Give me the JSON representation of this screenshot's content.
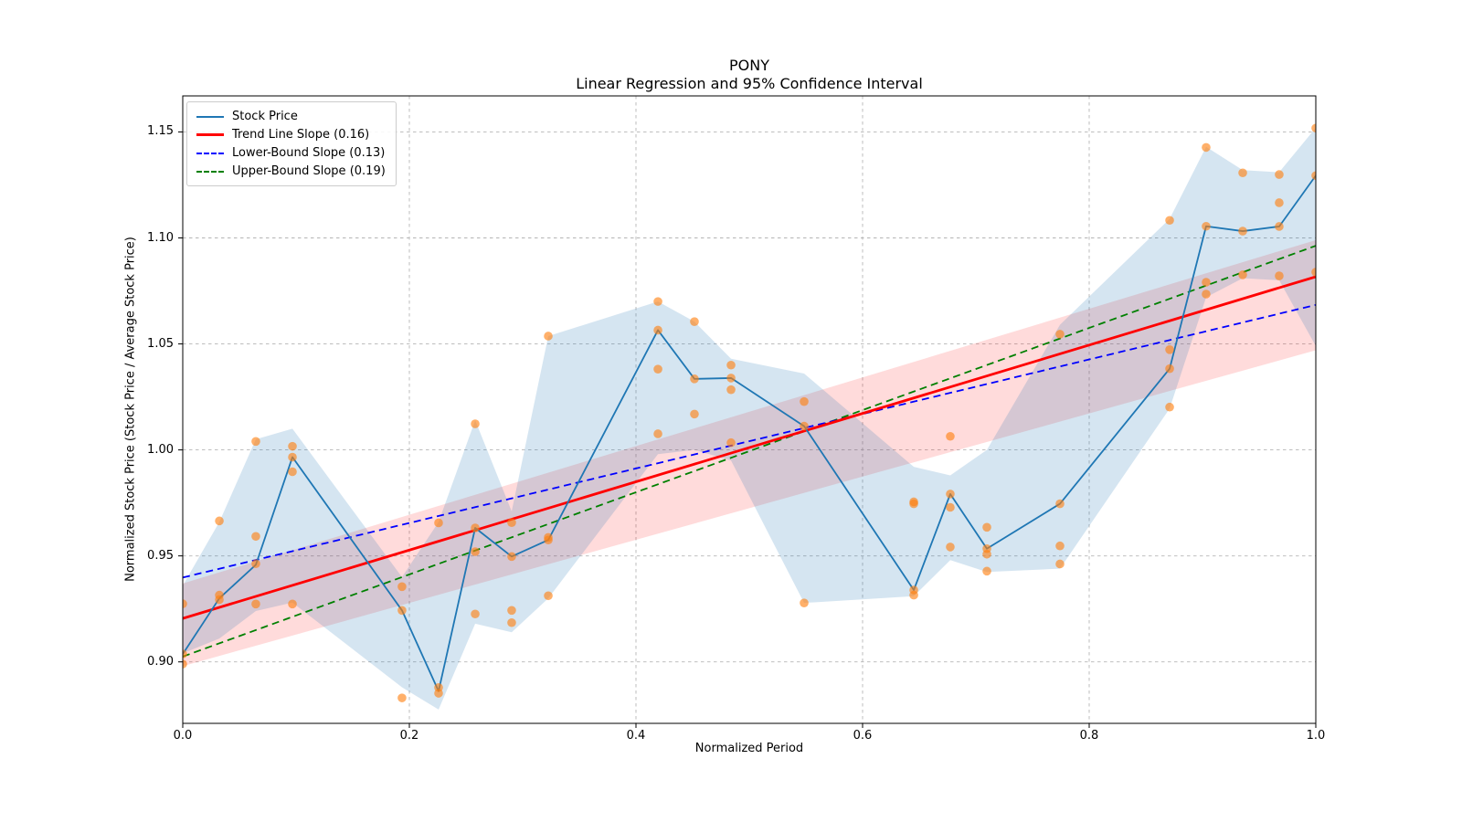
{
  "title": {
    "line1": "PONY",
    "line2": "Linear Regression and 95% Confidence Interval"
  },
  "axes": {
    "xlabel": "Normalized Period",
    "ylabel": "Normalized Stock Price (Stock Price / Average Stock Price)",
    "x_tick_labels": [
      "0.0",
      "0.2",
      "0.4",
      "0.6",
      "0.8",
      "1.0"
    ],
    "x_tick_values": [
      0.0,
      0.2,
      0.4,
      0.6,
      0.8,
      1.0
    ],
    "y_tick_labels": [
      "0.90",
      "0.95",
      "1.00",
      "1.05",
      "1.10",
      "1.15"
    ],
    "y_tick_values": [
      0.9,
      0.95,
      1.0,
      1.05,
      1.1,
      1.15
    ],
    "xlim": [
      0.0,
      1.0
    ],
    "ylim": [
      0.871,
      1.167
    ],
    "grid": true
  },
  "legend": {
    "position": "upper left",
    "entries": [
      {
        "label": "Stock Price",
        "color": "#1f77b4",
        "dash": "solid",
        "weight": 2
      },
      {
        "label": "Trend Line Slope (0.16)",
        "color": "#ff0000",
        "dash": "solid",
        "weight": 3
      },
      {
        "label": "Lower-Bound Slope (0.13)",
        "color": "#0000ff",
        "dash": "dashed",
        "weight": 2
      },
      {
        "label": "Upper-Bound Slope (0.19)",
        "color": "#008000",
        "dash": "dashed",
        "weight": 2
      }
    ]
  },
  "chart_data": {
    "type": "line",
    "title": "PONY",
    "subtitle": "Linear Regression and 95% Confidence Interval",
    "xlabel": "Normalized Period",
    "ylabel": "Normalized Stock Price (Stock Price / Average Stock Price)",
    "xlim": [
      0.0,
      1.0
    ],
    "ylim": [
      0.871,
      1.167
    ],
    "x": [
      0.0,
      0.0323,
      0.0645,
      0.0968,
      0.1935,
      0.2258,
      0.2581,
      0.2903,
      0.3226,
      0.4194,
      0.4516,
      0.4839,
      0.5484,
      0.6452,
      0.6774,
      0.7097,
      0.7742,
      0.871,
      0.9032,
      0.9355,
      0.9677,
      1.0
    ],
    "stock_price_line": [
      0.9037,
      0.93,
      0.9458,
      0.9966,
      0.9243,
      0.8862,
      0.9632,
      0.9497,
      0.9575,
      1.0565,
      1.0335,
      1.0339,
      1.0112,
      0.9339,
      0.9792,
      0.9534,
      0.9746,
      1.0383,
      1.1055,
      1.1032,
      1.1054,
      1.1294
    ],
    "scatter_groups": [
      [
        0.9274,
        0.9037,
        0.899
      ],
      [
        0.9665,
        0.9315,
        0.9294
      ],
      [
        1.004,
        0.9592,
        0.9463,
        0.9273
      ],
      [
        1.0017,
        0.9966,
        0.9897,
        0.9273
      ],
      [
        0.9355,
        0.9243,
        0.883
      ],
      [
        0.9656,
        0.8879,
        0.8852
      ],
      [
        1.0123,
        0.9632,
        0.952,
        0.9226
      ],
      [
        0.9657,
        0.9497,
        0.9243,
        0.9185
      ],
      [
        1.0537,
        0.9587,
        0.9575,
        0.9312
      ],
      [
        1.07,
        1.0565,
        1.0381,
        1.0076
      ],
      [
        1.0605,
        1.0335,
        1.0169
      ],
      [
        1.04,
        1.0339,
        1.0284,
        1.0034
      ],
      [
        1.0228,
        1.0112,
        0.9278
      ],
      [
        0.9755,
        0.9746,
        0.9339,
        0.9315
      ],
      [
        1.0064,
        0.9792,
        0.9729,
        0.9542
      ],
      [
        0.9635,
        0.9534,
        0.9508,
        0.9428
      ],
      [
        1.0546,
        0.9746,
        0.9547,
        0.9462
      ],
      [
        1.1083,
        1.0473,
        1.0383,
        1.0202
      ],
      [
        1.1427,
        1.1055,
        1.0791,
        1.0735
      ],
      [
        1.1307,
        1.1032,
        1.0826
      ],
      [
        1.1299,
        1.1166,
        1.1054,
        1.0821
      ],
      [
        1.1518,
        1.1294,
        1.0839
      ]
    ],
    "stock_band": {
      "top": [
        0.936,
        0.966,
        1.005,
        1.01,
        0.94,
        0.966,
        1.014,
        0.971,
        1.0537,
        1.07,
        1.0605,
        1.043,
        1.036,
        0.992,
        0.988,
        1.0,
        1.059,
        1.109,
        1.143,
        1.132,
        1.131,
        1.152
      ],
      "bottom": [
        0.904,
        0.911,
        0.924,
        0.928,
        0.888,
        0.8775,
        0.918,
        0.914,
        0.93,
        0.998,
        1.0,
        0.995,
        0.9278,
        0.931,
        0.948,
        0.9424,
        0.944,
        1.0195,
        1.072,
        1.081,
        1.08,
        1.049
      ]
    },
    "trend_line": {
      "slope": 0.16,
      "y_start": 0.9205,
      "y_end": 1.0817
    },
    "lower_bound_line": {
      "slope": 0.13,
      "y_start": 0.9398,
      "y_end": 1.0684
    },
    "upper_bound_line": {
      "slope": 0.19,
      "y_start": 0.9025,
      "y_end": 1.0963
    },
    "ci_band": {
      "top_start": 0.937,
      "top_end": 1.099,
      "bottom_start": 0.898,
      "bottom_end": 1.047
    },
    "colors": {
      "stock_line": "#1f77b4",
      "scatter": "#ff7f0e",
      "trend": "#ff0000",
      "lower_bound": "#0000ff",
      "upper_bound": "#008000",
      "stock_band": "#1f77b4",
      "ci_band": "#ff0000",
      "grid": "#b5b5b5",
      "spine": "#000000"
    }
  }
}
